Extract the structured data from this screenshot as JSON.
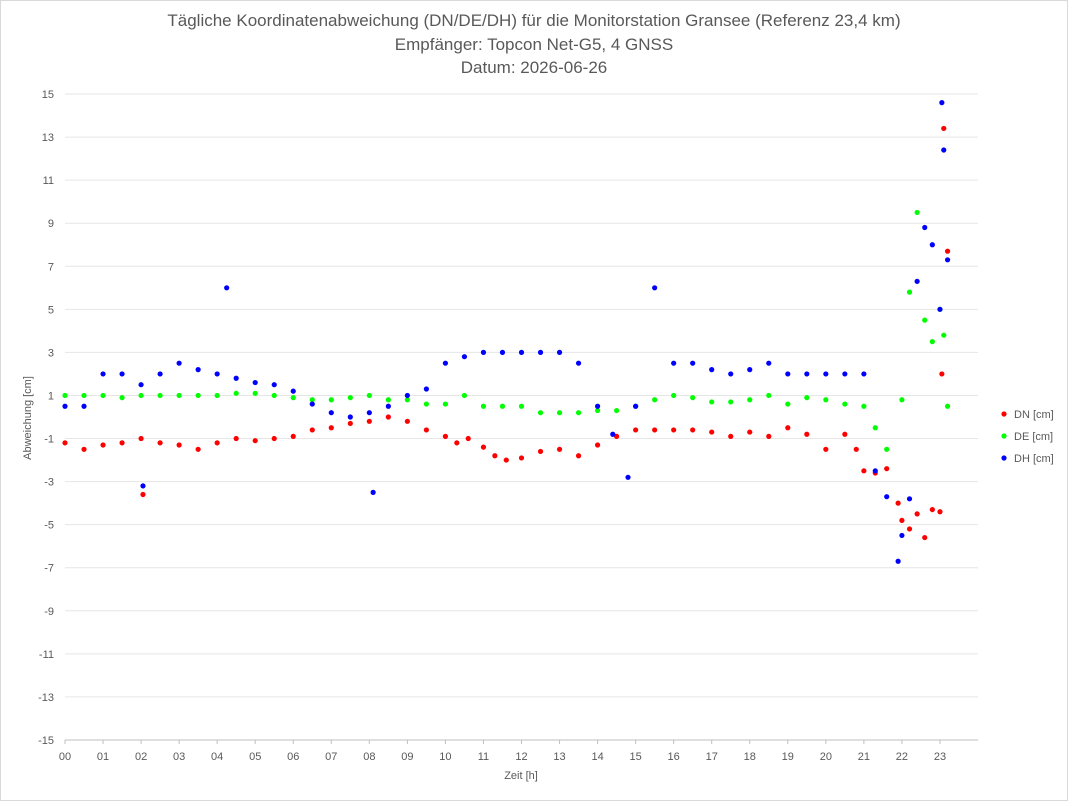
{
  "chart_data": {
    "type": "scatter",
    "title": "Tägliche Koordinatenabweichung (DN/DE/DH) für die Monitorstation Gransee (Referenz 23,4 km)",
    "subtitle": "Empfänger: Topcon Net-G5, 4 GNSS",
    "date_line": "Datum: 2026-06-26",
    "xlabel": "Zeit [h]",
    "ylabel": "Abweichung [cm]",
    "xlim": [
      0,
      24
    ],
    "ylim": [
      -15,
      15
    ],
    "xticks": [
      "00",
      "01",
      "02",
      "03",
      "04",
      "05",
      "06",
      "07",
      "08",
      "09",
      "10",
      "11",
      "12",
      "13",
      "14",
      "15",
      "16",
      "17",
      "18",
      "19",
      "20",
      "21",
      "22",
      "23"
    ],
    "yticks": [
      "15",
      "13",
      "11",
      "9",
      "7",
      "5",
      "3",
      "1",
      "-1",
      "-3",
      "-5",
      "-7",
      "-9",
      "-11",
      "-13",
      "-15"
    ],
    "grid": "horizontal",
    "legend": "right",
    "series": [
      {
        "name": "DN [cm]",
        "color": "#ff0000",
        "x": [
          0.0,
          0.5,
          1.0,
          1.5,
          2.0,
          2.05,
          2.5,
          3.0,
          3.5,
          4.0,
          4.5,
          5.0,
          5.5,
          6.0,
          6.5,
          7.0,
          7.5,
          8.0,
          8.5,
          9.0,
          9.5,
          10.0,
          10.3,
          10.6,
          11.0,
          11.3,
          11.6,
          12.0,
          12.5,
          13.0,
          13.5,
          14.0,
          14.5,
          15.0,
          15.5,
          16.0,
          16.5,
          17.0,
          17.5,
          18.0,
          18.5,
          19.0,
          19.5,
          20.0,
          20.5,
          20.8,
          21.0,
          21.3,
          21.6,
          21.9,
          22.0,
          22.2,
          22.4,
          22.6,
          22.8,
          23.0,
          23.05,
          23.1,
          23.2
        ],
        "y": [
          -1.2,
          -1.5,
          -1.3,
          -1.2,
          -1.0,
          -3.6,
          -1.2,
          -1.3,
          -1.5,
          -1.2,
          -1.0,
          -1.1,
          -1.0,
          -0.9,
          -0.6,
          -0.5,
          -0.3,
          -0.2,
          0.0,
          -0.2,
          -0.6,
          -0.9,
          -1.2,
          -1.0,
          -1.4,
          -1.8,
          -2.0,
          -1.9,
          -1.6,
          -1.5,
          -1.8,
          -1.3,
          -0.9,
          -0.6,
          -0.6,
          -0.6,
          -0.6,
          -0.7,
          -0.9,
          -0.7,
          -0.9,
          -0.5,
          -0.8,
          -1.5,
          -0.8,
          -1.5,
          -2.5,
          -2.6,
          -2.4,
          -4.0,
          -4.8,
          -5.2,
          -4.5,
          -5.6,
          -4.3,
          -4.4,
          2.0,
          13.4,
          7.7
        ]
      },
      {
        "name": "DE [cm]",
        "color": "#00ff00",
        "x": [
          0.0,
          0.5,
          1.0,
          1.5,
          2.0,
          2.5,
          3.0,
          3.5,
          4.0,
          4.5,
          5.0,
          5.5,
          6.0,
          6.5,
          7.0,
          7.5,
          8.0,
          8.5,
          9.0,
          9.5,
          10.0,
          10.5,
          11.0,
          11.5,
          12.0,
          12.5,
          13.0,
          13.5,
          14.0,
          14.5,
          15.0,
          15.5,
          16.0,
          16.5,
          17.0,
          17.5,
          18.0,
          18.5,
          19.0,
          19.5,
          20.0,
          20.5,
          21.0,
          21.3,
          21.6,
          22.0,
          22.2,
          22.4,
          22.6,
          22.8,
          23.0,
          23.1,
          23.2
        ],
        "y": [
          1.0,
          1.0,
          1.0,
          0.9,
          1.0,
          1.0,
          1.0,
          1.0,
          1.0,
          1.1,
          1.1,
          1.0,
          0.9,
          0.8,
          0.8,
          0.9,
          1.0,
          0.8,
          0.8,
          0.6,
          0.6,
          1.0,
          0.5,
          0.5,
          0.5,
          0.2,
          0.2,
          0.2,
          0.3,
          0.3,
          0.5,
          0.8,
          1.0,
          0.9,
          0.7,
          0.7,
          0.8,
          1.0,
          0.6,
          0.9,
          0.8,
          0.6,
          0.5,
          -0.5,
          -1.5,
          0.8,
          5.8,
          9.5,
          4.5,
          3.5,
          5.0,
          3.8,
          0.5
        ]
      },
      {
        "name": "DH [cm]",
        "color": "#0000ff",
        "x": [
          0.0,
          0.5,
          1.0,
          1.5,
          2.0,
          2.05,
          2.5,
          3.0,
          3.5,
          4.0,
          4.25,
          4.5,
          5.0,
          5.5,
          6.0,
          6.5,
          7.0,
          7.5,
          8.0,
          8.1,
          8.5,
          9.0,
          9.5,
          10.0,
          10.5,
          11.0,
          11.5,
          12.0,
          12.5,
          13.0,
          13.5,
          14.0,
          14.4,
          14.8,
          15.0,
          15.5,
          16.0,
          16.5,
          17.0,
          17.5,
          18.0,
          18.5,
          19.0,
          19.5,
          20.0,
          20.5,
          21.0,
          21.3,
          21.6,
          21.9,
          22.0,
          22.2,
          22.4,
          22.6,
          22.8,
          23.0,
          23.05,
          23.1,
          23.2
        ],
        "y": [
          0.5,
          0.5,
          2.0,
          2.0,
          1.5,
          -3.2,
          2.0,
          2.5,
          2.2,
          2.0,
          6.0,
          1.8,
          1.6,
          1.5,
          1.2,
          0.6,
          0.2,
          0.0,
          0.2,
          -3.5,
          0.5,
          1.0,
          1.3,
          2.5,
          2.8,
          3.0,
          3.0,
          3.0,
          3.0,
          3.0,
          2.5,
          0.5,
          -0.8,
          -2.8,
          0.5,
          6.0,
          2.5,
          2.5,
          2.2,
          2.0,
          2.2,
          2.5,
          2.0,
          2.0,
          2.0,
          2.0,
          2.0,
          -2.5,
          -3.7,
          -6.7,
          -5.5,
          -3.8,
          6.3,
          8.8,
          8.0,
          5.0,
          14.6,
          12.4,
          7.3
        ]
      }
    ]
  }
}
